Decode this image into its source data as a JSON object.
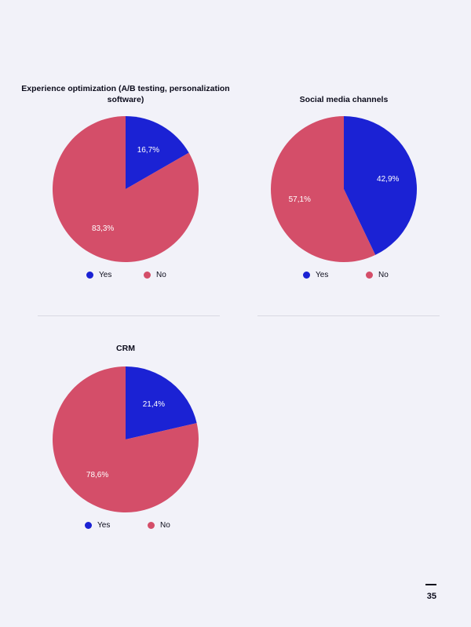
{
  "colors": {
    "yes": "#1b22d4",
    "no": "#d44e69",
    "background": "#f2f2f9"
  },
  "chart_data": [
    {
      "type": "pie",
      "title": "Experience optimization (A/B testing, personalization software)",
      "labels": [
        "Yes",
        "No"
      ],
      "values": [
        16.7,
        83.3
      ],
      "value_labels": [
        "16,7%",
        "83,3%"
      ],
      "legend": [
        "Yes",
        "No"
      ],
      "legend_position": "bottom"
    },
    {
      "type": "pie",
      "title": "Social media channels",
      "labels": [
        "Yes",
        "No"
      ],
      "values": [
        42.9,
        57.1
      ],
      "value_labels": [
        "42,9%",
        "57,1%"
      ],
      "legend": [
        "Yes",
        "No"
      ],
      "legend_position": "bottom"
    },
    {
      "type": "pie",
      "title": "CRM",
      "labels": [
        "Yes",
        "No"
      ],
      "values": [
        21.4,
        78.6
      ],
      "value_labels": [
        "21,4%",
        "78,6%"
      ],
      "legend": [
        "Yes",
        "No"
      ],
      "legend_position": "bottom"
    }
  ],
  "page_number": "35"
}
